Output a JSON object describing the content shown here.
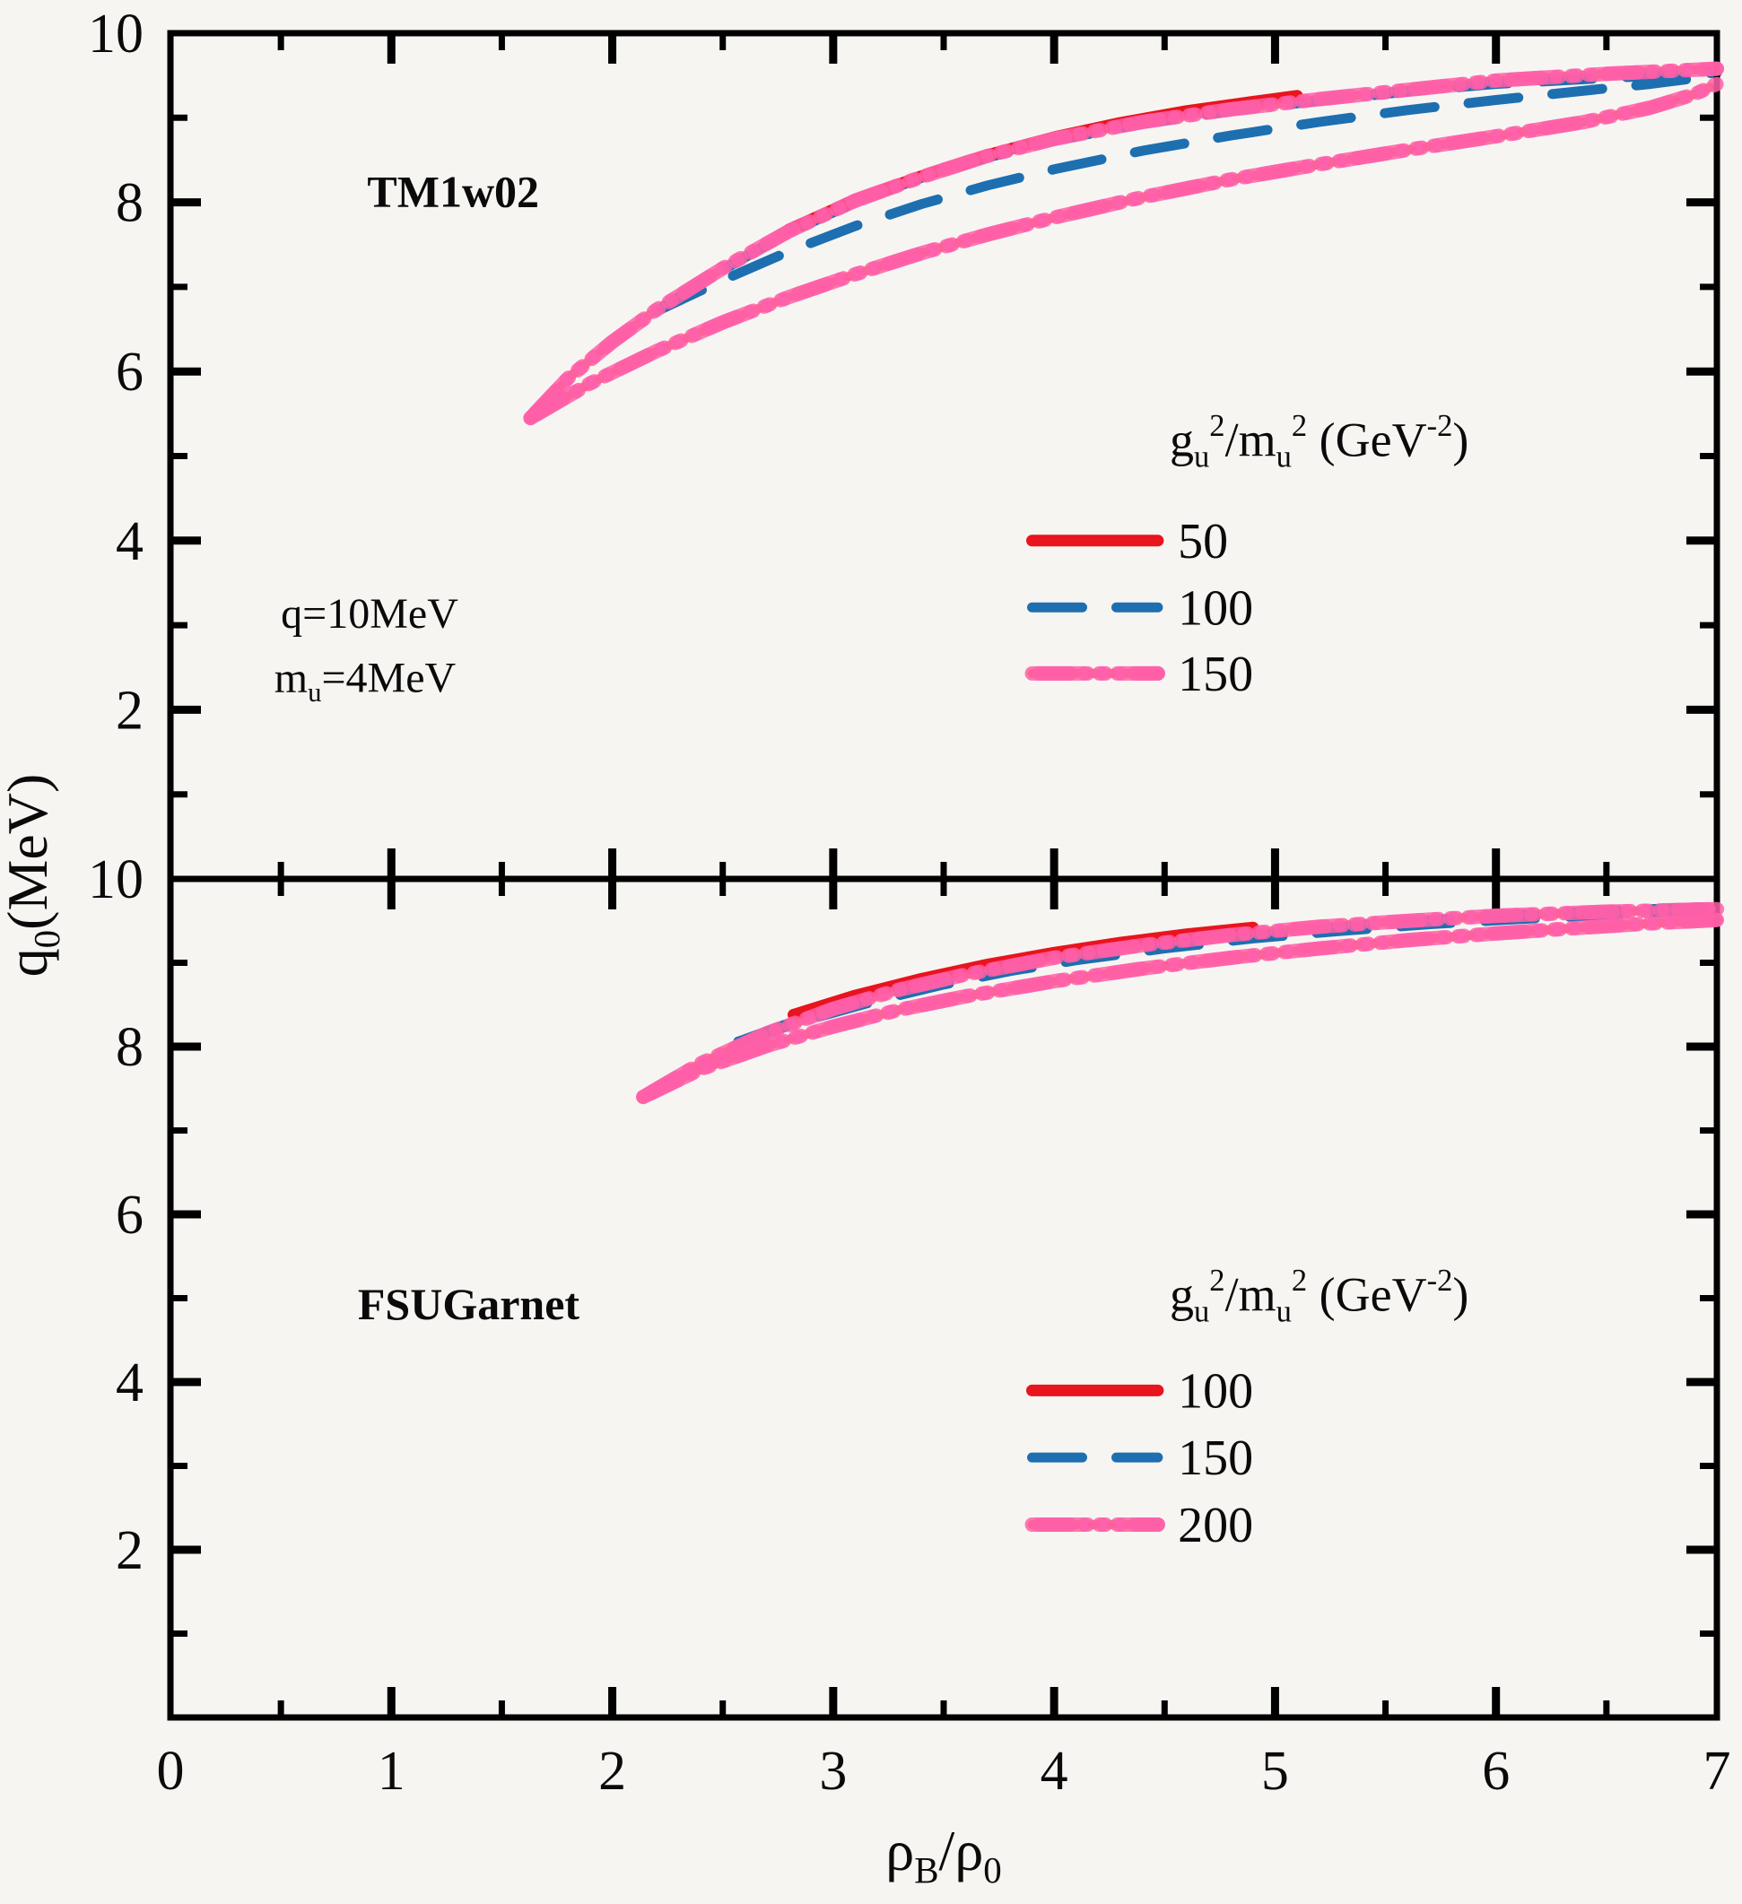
{
  "figure": {
    "bg": "#f6f5f2",
    "frame_color": "#000000",
    "text_color": "#0a0a0a",
    "colors": {
      "red": "#e8141e",
      "blue": "#1d6fb0",
      "orange": "#f07a1e",
      "halo_pink": "#ff5fa8"
    }
  },
  "axis": {
    "y_label_parts": [
      {
        "t": "q"
      },
      {
        "t": "0",
        "sub": true
      },
      {
        "t": "(MeV)"
      }
    ],
    "x_label_parts": [
      {
        "t": "ρ"
      },
      {
        "t": "B",
        "sub": true
      },
      {
        "t": "/ρ"
      },
      {
        "t": "0",
        "sub": true
      }
    ]
  },
  "chart_data": [
    {
      "type": "line",
      "title": "TM1w02",
      "xlim": [
        0,
        7
      ],
      "ylim": [
        0,
        10
      ],
      "grid": false,
      "x_major": [
        1,
        2,
        3,
        4,
        5,
        6
      ],
      "x_minor_step": 0.5,
      "y_major": [
        2,
        4,
        6,
        8
      ],
      "y_minor": [
        1,
        3,
        5,
        7,
        9
      ],
      "y_tick_labels": [
        {
          "v": 10,
          "t": "10"
        },
        {
          "v": 8,
          "t": "8"
        },
        {
          "v": 6,
          "t": "6"
        },
        {
          "v": 4,
          "t": "4"
        },
        {
          "v": 2,
          "t": "2"
        }
      ],
      "x_tick_labels": [],
      "annotations": [
        {
          "name": "panel-title-tm1w02",
          "parts": [
            {
              "t": "TM1w02"
            }
          ],
          "x": 1.28,
          "y": 7.95,
          "bold": true,
          "size": 50,
          "anchor": "middle"
        },
        {
          "name": "q-annotation",
          "parts": [
            {
              "t": "q=10MeV"
            }
          ],
          "x": 0.5,
          "y": 2.97,
          "bold": false,
          "size": 48,
          "anchor": "start"
        },
        {
          "name": "mu-annotation",
          "parts": [
            {
              "t": "m"
            },
            {
              "t": "u",
              "sub": true
            },
            {
              "t": "=4MeV"
            }
          ],
          "x": 0.47,
          "y": 2.21,
          "bold": false,
          "size": 48,
          "anchor": "start"
        }
      ],
      "legend": {
        "title_parts": [
          {
            "t": "g"
          },
          {
            "t": "u",
            "sub": true
          },
          {
            "t": "2",
            "sup": true
          },
          {
            "t": "/m"
          },
          {
            "t": "u",
            "sub": true
          },
          {
            "t": "2",
            "sup": true
          },
          {
            "t": " (GeV"
          },
          {
            "t": "-2",
            "sup": true
          },
          {
            "t": ")"
          }
        ],
        "title_xy": [
          5.2,
          5.0
        ],
        "line_x": [
          3.9,
          4.47
        ],
        "label_x": 4.56,
        "entries": [
          {
            "label": "50",
            "style": "solid",
            "color": "red",
            "y": 4.0
          },
          {
            "label": "100",
            "style": "dashed",
            "color": "blue",
            "y": 3.21
          },
          {
            "label": "150",
            "style": "dashdot",
            "color": "orange",
            "y": 2.43
          }
        ]
      },
      "series": [
        {
          "name": "150-upper",
          "legend": "150",
          "style": "dashdot",
          "color": "orange",
          "points": [
            [
              1.63,
              5.45
            ],
            [
              1.8,
              5.92
            ],
            [
              2.0,
              6.35
            ],
            [
              2.2,
              6.73
            ],
            [
              2.5,
              7.22
            ],
            [
              2.8,
              7.66
            ],
            [
              3.1,
              8.02
            ],
            [
              3.4,
              8.3
            ],
            [
              3.7,
              8.55
            ],
            [
              4.0,
              8.75
            ],
            [
              4.4,
              8.95
            ],
            [
              4.8,
              9.1
            ],
            [
              5.2,
              9.22
            ],
            [
              5.6,
              9.33
            ],
            [
              6.0,
              9.44
            ],
            [
              6.5,
              9.52
            ],
            [
              7.0,
              9.58
            ]
          ]
        },
        {
          "name": "150-lower",
          "legend": "150",
          "style": "dashdot",
          "color": "orange",
          "points": [
            [
              1.63,
              5.45
            ],
            [
              1.9,
              5.86
            ],
            [
              2.2,
              6.24
            ],
            [
              2.5,
              6.58
            ],
            [
              2.8,
              6.88
            ],
            [
              3.1,
              7.15
            ],
            [
              3.4,
              7.4
            ],
            [
              3.7,
              7.62
            ],
            [
              4.0,
              7.82
            ],
            [
              4.4,
              8.06
            ],
            [
              4.8,
              8.27
            ],
            [
              5.2,
              8.45
            ],
            [
              5.6,
              8.62
            ],
            [
              6.0,
              8.78
            ],
            [
              6.4,
              8.95
            ],
            [
              6.7,
              9.12
            ],
            [
              6.9,
              9.28
            ],
            [
              7.0,
              9.4
            ]
          ]
        },
        {
          "name": "100-upper",
          "legend": "100",
          "style": "dashed",
          "color": "blue",
          "points": [
            [
              2.2,
              6.71
            ],
            [
              2.5,
              7.2
            ],
            [
              2.8,
              7.64
            ],
            [
              3.1,
              8.0
            ],
            [
              3.4,
              8.29
            ],
            [
              3.7,
              8.53
            ],
            [
              4.0,
              8.73
            ],
            [
              4.4,
              8.93
            ],
            [
              4.8,
              9.08
            ],
            [
              5.2,
              9.2
            ],
            [
              5.6,
              9.31
            ],
            [
              6.0,
              9.4
            ],
            [
              6.5,
              9.47
            ],
            [
              7.0,
              9.53
            ]
          ]
        },
        {
          "name": "100-lower",
          "legend": "100",
          "style": "dashed",
          "color": "blue",
          "points": [
            [
              2.2,
              6.71
            ],
            [
              2.5,
              7.08
            ],
            [
              2.8,
              7.42
            ],
            [
              3.1,
              7.72
            ],
            [
              3.4,
              7.98
            ],
            [
              3.7,
              8.2
            ],
            [
              4.0,
              8.39
            ],
            [
              4.4,
              8.61
            ],
            [
              4.8,
              8.79
            ],
            [
              5.2,
              8.95
            ],
            [
              5.6,
              9.09
            ],
            [
              6.0,
              9.21
            ],
            [
              6.4,
              9.32
            ],
            [
              6.7,
              9.4
            ],
            [
              7.0,
              9.5
            ]
          ]
        },
        {
          "name": "50",
          "legend": "50",
          "style": "solid",
          "color": "red",
          "points": [
            [
              2.8,
              7.68
            ],
            [
              3.1,
              8.03
            ],
            [
              3.4,
              8.31
            ],
            [
              3.7,
              8.56
            ],
            [
              4.0,
              8.77
            ],
            [
              4.3,
              8.94
            ],
            [
              4.6,
              9.08
            ],
            [
              4.9,
              9.19
            ],
            [
              5.1,
              9.26
            ]
          ]
        }
      ]
    },
    {
      "type": "line",
      "title": "FSUGarnet",
      "xlim": [
        0,
        7
      ],
      "ylim": [
        0,
        10
      ],
      "grid": false,
      "x_major": [
        1,
        2,
        3,
        4,
        5,
        6
      ],
      "x_minor_step": 0.5,
      "y_major": [
        2,
        4,
        6,
        8
      ],
      "y_minor": [
        1,
        3,
        5,
        7,
        9
      ],
      "y_tick_labels": [
        {
          "v": 10,
          "t": "10"
        },
        {
          "v": 8,
          "t": "8"
        },
        {
          "v": 6,
          "t": "6"
        },
        {
          "v": 4,
          "t": "4"
        },
        {
          "v": 2,
          "t": "2"
        }
      ],
      "x_tick_labels": [
        {
          "v": 0,
          "t": "0"
        },
        {
          "v": 1,
          "t": "1"
        },
        {
          "v": 2,
          "t": "2"
        },
        {
          "v": 3,
          "t": "3"
        },
        {
          "v": 4,
          "t": "4"
        },
        {
          "v": 5,
          "t": "5"
        },
        {
          "v": 6,
          "t": "6"
        },
        {
          "v": 7,
          "t": "7"
        }
      ],
      "annotations": [
        {
          "name": "panel-title-fsugarnet",
          "parts": [
            {
              "t": "FSUGarnet"
            }
          ],
          "x": 1.35,
          "y": 4.75,
          "bold": true,
          "size": 50,
          "anchor": "middle"
        }
      ],
      "legend": {
        "title_parts": [
          {
            "t": "g"
          },
          {
            "t": "u",
            "sub": true
          },
          {
            "t": "2",
            "sup": true
          },
          {
            "t": "/m"
          },
          {
            "t": "u",
            "sub": true
          },
          {
            "t": "2",
            "sup": true
          },
          {
            "t": " (GeV"
          },
          {
            "t": "-2",
            "sup": true
          },
          {
            "t": ")"
          }
        ],
        "title_xy": [
          5.2,
          4.85
        ],
        "line_x": [
          3.9,
          4.47
        ],
        "label_x": 4.56,
        "entries": [
          {
            "label": "100",
            "style": "solid",
            "color": "red",
            "y": 3.9
          },
          {
            "label": "150",
            "style": "dashed",
            "color": "blue",
            "y": 3.1
          },
          {
            "label": "200",
            "style": "dashdot",
            "color": "orange",
            "y": 2.3
          }
        ]
      },
      "series": [
        {
          "name": "200-upper",
          "legend": "200",
          "style": "dashdot",
          "color": "orange",
          "points": [
            [
              2.14,
              7.4
            ],
            [
              2.4,
              7.8
            ],
            [
              2.7,
              8.16
            ],
            [
              3.0,
              8.45
            ],
            [
              3.3,
              8.68
            ],
            [
              3.6,
              8.86
            ],
            [
              4.0,
              9.06
            ],
            [
              4.4,
              9.21
            ],
            [
              4.8,
              9.33
            ],
            [
              5.2,
              9.43
            ],
            [
              5.6,
              9.5
            ],
            [
              6.0,
              9.56
            ],
            [
              6.5,
              9.61
            ],
            [
              7.0,
              9.64
            ]
          ]
        },
        {
          "name": "200-lower",
          "legend": "200",
          "style": "dashdot",
          "color": "orange",
          "points": [
            [
              2.14,
              7.4
            ],
            [
              2.4,
              7.73
            ],
            [
              2.7,
              8.01
            ],
            [
              3.0,
              8.24
            ],
            [
              3.3,
              8.44
            ],
            [
              3.6,
              8.6
            ],
            [
              4.0,
              8.78
            ],
            [
              4.4,
              8.93
            ],
            [
              4.8,
              9.06
            ],
            [
              5.2,
              9.17
            ],
            [
              5.6,
              9.27
            ],
            [
              6.0,
              9.35
            ],
            [
              6.4,
              9.42
            ],
            [
              6.7,
              9.47
            ],
            [
              7.0,
              9.51
            ]
          ]
        },
        {
          "name": "150-upper",
          "legend": "150",
          "style": "dashed",
          "color": "blue",
          "points": [
            [
              2.57,
              8.06
            ],
            [
              2.8,
              8.28
            ],
            [
              3.1,
              8.51
            ],
            [
              3.4,
              8.7
            ],
            [
              3.7,
              8.87
            ],
            [
              4.0,
              9.01
            ],
            [
              4.4,
              9.17
            ],
            [
              4.8,
              9.3
            ],
            [
              5.2,
              9.4
            ],
            [
              5.6,
              9.49
            ],
            [
              6.0,
              9.56
            ],
            [
              6.5,
              9.62
            ],
            [
              7.0,
              9.67
            ]
          ]
        },
        {
          "name": "150-lower",
          "legend": "150",
          "style": "dashed",
          "color": "blue",
          "points": [
            [
              2.57,
              8.06
            ],
            [
              2.9,
              8.33
            ],
            [
              3.2,
              8.55
            ],
            [
              3.5,
              8.74
            ],
            [
              3.8,
              8.9
            ],
            [
              4.1,
              9.03
            ],
            [
              4.5,
              9.17
            ],
            [
              4.9,
              9.29
            ],
            [
              5.3,
              9.38
            ],
            [
              5.7,
              9.46
            ],
            [
              6.1,
              9.52
            ],
            [
              6.5,
              9.57
            ],
            [
              7.0,
              9.62
            ]
          ]
        },
        {
          "name": "100",
          "legend": "100",
          "style": "solid",
          "color": "red",
          "points": [
            [
              2.82,
              8.38
            ],
            [
              3.1,
              8.61
            ],
            [
              3.4,
              8.81
            ],
            [
              3.7,
              8.98
            ],
            [
              4.0,
              9.12
            ],
            [
              4.3,
              9.24
            ],
            [
              4.6,
              9.34
            ],
            [
              4.9,
              9.42
            ]
          ]
        }
      ]
    }
  ]
}
